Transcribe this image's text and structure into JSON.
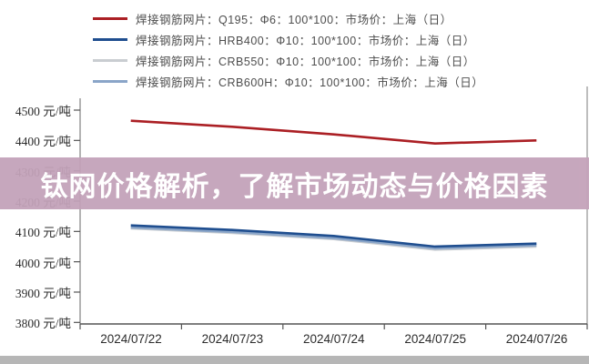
{
  "banner": {
    "title": "钛网价格解析，了解市场动态与价格因素",
    "bg_color": "#c3a2b9",
    "text_color": "#ffffff"
  },
  "bottom_strip_color": "#b6b6b6",
  "axis_color": "#8a8a8a",
  "chart_data": {
    "type": "line",
    "title": "",
    "xlabel": "",
    "ylabel_unit": "元/吨",
    "grid": false,
    "legend_position": "top",
    "categories": [
      "2024/07/22",
      "2024/07/23",
      "2024/07/24",
      "2024/07/25",
      "2024/07/26"
    ],
    "y_ticks": [
      4500,
      4400,
      4300,
      4200,
      4100,
      4000,
      3900,
      3800
    ],
    "ylim": [
      3790,
      4540
    ],
    "series": [
      {
        "name": "焊接钢筋网片：Q195：Φ6：100*100：市场价：上海（日）",
        "color": "#ab1f24",
        "values": [
          4465,
          4445,
          4420,
          4390,
          4400
        ]
      },
      {
        "name": "焊接钢筋网片：HRB400：Φ10：100*100：市场价：上海（日）",
        "color": "#1f4e8f",
        "values": [
          4120,
          4105,
          4085,
          4050,
          4060
        ]
      },
      {
        "name": "焊接钢筋网片：CRB550：Φ10：100*100：市场价：上海（日）",
        "color": "#c9cdd1",
        "values": [
          4110,
          4095,
          4075,
          4040,
          4050
        ]
      },
      {
        "name": "焊接钢筋网片：CRB600H：Φ10：100*100：市场价：上海（日）",
        "color": "#8aa5c8",
        "values": [
          4113,
          4098,
          4078,
          4044,
          4054
        ]
      }
    ]
  }
}
